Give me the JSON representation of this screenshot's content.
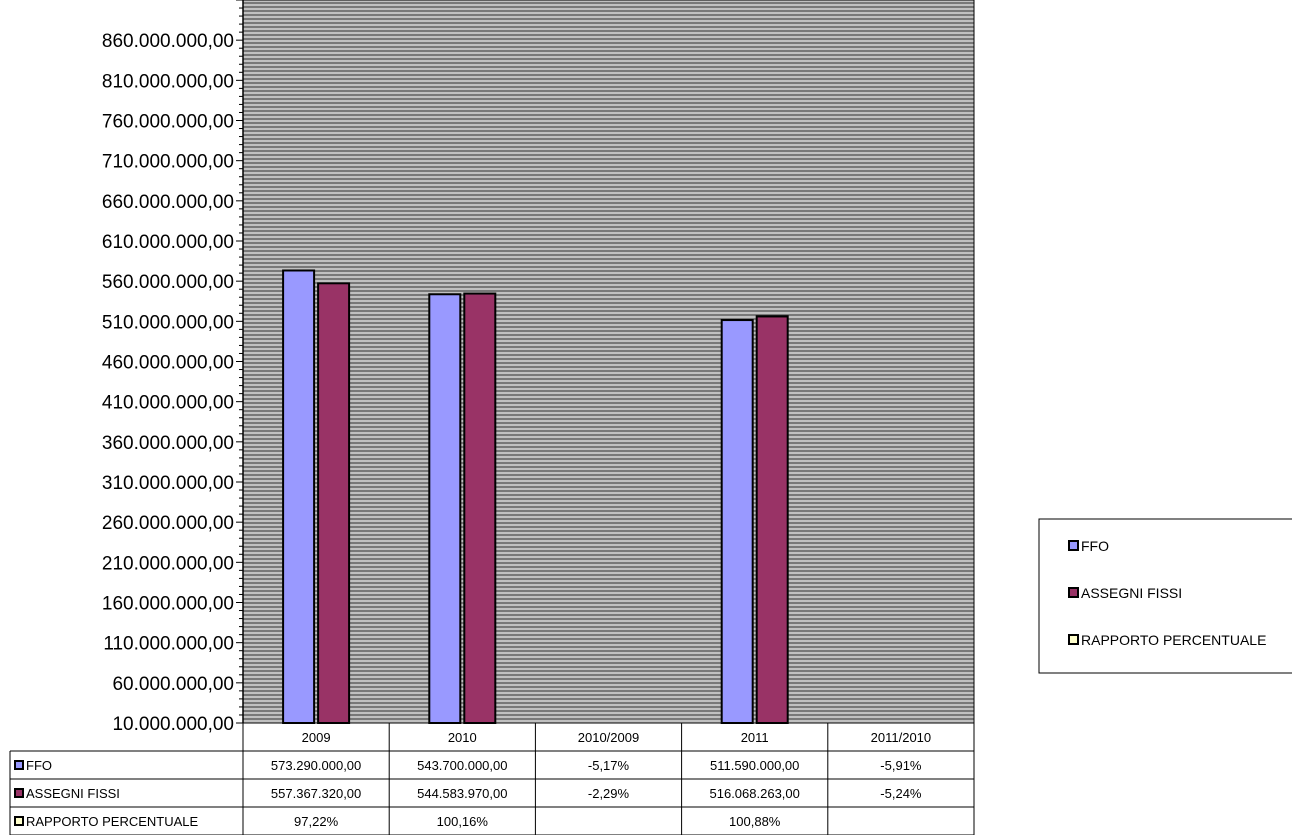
{
  "chart_data": {
    "type": "bar",
    "categories": [
      "2009",
      "2010",
      "2010/2009",
      "2011",
      "2011/2010"
    ],
    "y_tick_labels": [
      "10.000.000,00",
      "60.000.000,00",
      "110.000.000,00",
      "160.000.000,00",
      "210.000.000,00",
      "260.000.000,00",
      "310.000.000,00",
      "360.000.000,00",
      "410.000.000,00",
      "460.000.000,00",
      "510.000.000,00",
      "560.000.000,00",
      "610.000.000,00",
      "660.000.000,00",
      "710.000.000,00",
      "760.000.000,00",
      "810.000.000,00",
      "860.000.000,00"
    ],
    "ylim": [
      10000000,
      910000000
    ],
    "grid": true,
    "legend_position": "right",
    "series": [
      {
        "name": "FFO",
        "color": "#9999ff",
        "values": [
          573290000,
          543700000,
          null,
          511590000,
          null
        ],
        "table_values": [
          "573.290.000,00",
          "543.700.000,00",
          "-5,17%",
          "511.590.000,00",
          "-5,91%"
        ]
      },
      {
        "name": "ASSEGNI FISSI",
        "color": "#993366",
        "values": [
          557367320,
          544583970,
          null,
          516068263,
          null
        ],
        "table_values": [
          "557.367.320,00",
          "544.583.970,00",
          "-2,29%",
          "516.068.263,00",
          "-5,24%"
        ]
      },
      {
        "name": "RAPPORTO PERCENTUALE",
        "color": "#ffffcc",
        "values": [
          null,
          null,
          null,
          null,
          null
        ],
        "table_values": [
          "97,22%",
          "100,16%",
          "",
          "100,88%",
          ""
        ]
      }
    ]
  },
  "colors": {
    "plot_background": "#c0c0c0",
    "gridline": "#000000"
  }
}
